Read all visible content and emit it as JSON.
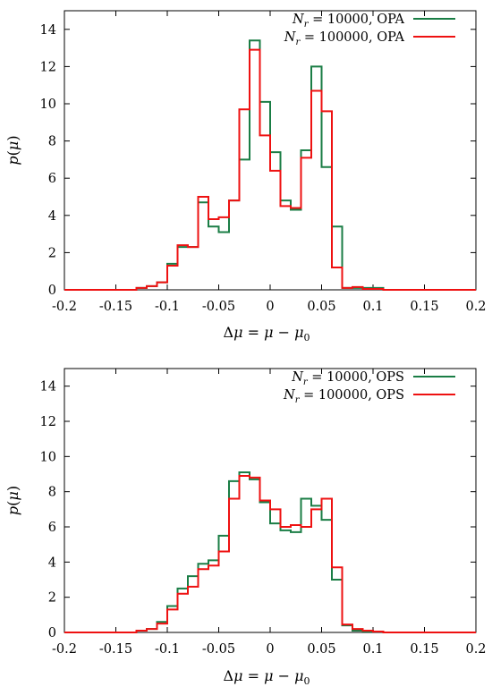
{
  "chart_data": [
    {
      "type": "line",
      "step": true,
      "xlabel": "Δμ = μ − μ₀",
      "ylabel": "p(μ)",
      "xlim": [
        -0.2,
        0.2
      ],
      "ylim": [
        0,
        15
      ],
      "xticks": [
        -0.2,
        -0.15,
        -0.1,
        -0.05,
        0,
        0.05,
        0.1,
        0.15,
        0.2
      ],
      "xtick_labels": [
        "-0.2",
        "-0.15",
        "-0.1",
        "-0.05",
        "0",
        "0.05",
        "0.1",
        "0.15",
        "0.2"
      ],
      "yticks": [
        0,
        2,
        4,
        6,
        8,
        10,
        12,
        14
      ],
      "ytick_labels": [
        "0",
        "2",
        "4",
        "6",
        "8",
        "10",
        "12",
        "14"
      ],
      "grid": false,
      "legend_position": "top-right",
      "bin_edges": [
        -0.2,
        -0.13,
        -0.12,
        -0.11,
        -0.1,
        -0.09,
        -0.08,
        -0.07,
        -0.06,
        -0.05,
        -0.04,
        -0.03,
        -0.02,
        -0.01,
        0.0,
        0.01,
        0.02,
        0.03,
        0.04,
        0.05,
        0.06,
        0.07,
        0.08,
        0.09,
        0.1,
        0.11,
        0.2
      ],
      "series": [
        {
          "name": "N_r = 10000, OPA",
          "color": "#1a7d45",
          "values": [
            0,
            0.1,
            0.2,
            0.4,
            1.4,
            2.3,
            2.3,
            4.7,
            3.4,
            3.1,
            4.8,
            7.0,
            13.4,
            10.1,
            7.4,
            4.8,
            4.3,
            7.5,
            12.0,
            6.6,
            3.4,
            0.1,
            0.1,
            0.1,
            0.1,
            0
          ]
        },
        {
          "name": "N_r = 100000, OPA",
          "color": "#ee1111",
          "values": [
            0,
            0.1,
            0.2,
            0.4,
            1.3,
            2.4,
            2.3,
            5.0,
            3.8,
            3.9,
            4.8,
            9.7,
            12.9,
            8.3,
            6.4,
            4.5,
            4.4,
            7.1,
            10.7,
            9.6,
            1.2,
            0.1,
            0.15,
            0.05,
            0.05,
            0
          ]
        }
      ]
    },
    {
      "type": "line",
      "step": true,
      "xlabel": "Δμ = μ − μ₀",
      "ylabel": "p(μ)",
      "xlim": [
        -0.2,
        0.2
      ],
      "ylim": [
        0,
        15
      ],
      "xticks": [
        -0.2,
        -0.15,
        -0.1,
        -0.05,
        0,
        0.05,
        0.1,
        0.15,
        0.2
      ],
      "xtick_labels": [
        "-0.2",
        "-0.15",
        "-0.1",
        "-0.05",
        "0",
        "0.05",
        "0.1",
        "0.15",
        "0.2"
      ],
      "yticks": [
        0,
        2,
        4,
        6,
        8,
        10,
        12,
        14
      ],
      "ytick_labels": [
        "0",
        "2",
        "4",
        "6",
        "8",
        "10",
        "12",
        "14"
      ],
      "grid": false,
      "legend_position": "top-right",
      "bin_edges": [
        -0.2,
        -0.13,
        -0.12,
        -0.11,
        -0.1,
        -0.09,
        -0.08,
        -0.07,
        -0.06,
        -0.05,
        -0.04,
        -0.03,
        -0.02,
        -0.01,
        0.0,
        0.01,
        0.02,
        0.03,
        0.04,
        0.05,
        0.06,
        0.07,
        0.08,
        0.09,
        0.1,
        0.11,
        0.2
      ],
      "series": [
        {
          "name": "N_r = 10000, OPS",
          "color": "#1a7d45",
          "values": [
            0,
            0.1,
            0.2,
            0.6,
            1.5,
            2.5,
            3.2,
            3.9,
            4.1,
            5.5,
            8.6,
            9.1,
            8.7,
            7.4,
            6.2,
            5.8,
            5.7,
            7.6,
            7.2,
            6.4,
            3.0,
            0.4,
            0.1,
            0.05,
            0.05,
            0
          ]
        },
        {
          "name": "N_r = 100000, OPS",
          "color": "#ee1111",
          "values": [
            0,
            0.1,
            0.2,
            0.5,
            1.3,
            2.2,
            2.6,
            3.6,
            3.8,
            4.6,
            7.6,
            8.9,
            8.8,
            7.5,
            7.0,
            6.0,
            6.1,
            6.0,
            7.0,
            7.6,
            3.7,
            0.45,
            0.2,
            0.1,
            0.05,
            0
          ]
        }
      ]
    }
  ]
}
